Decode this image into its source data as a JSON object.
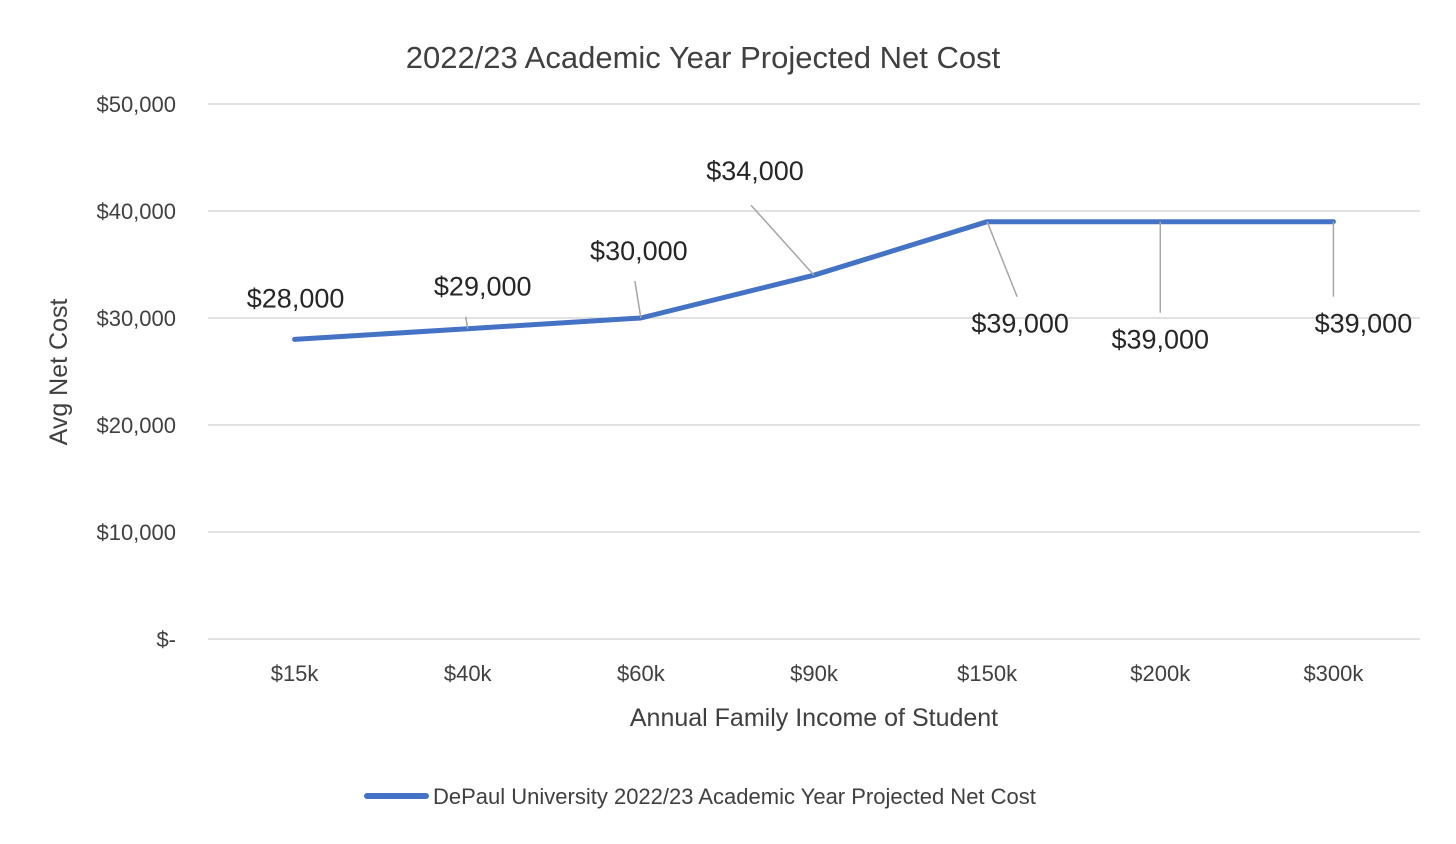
{
  "chart_data": {
    "type": "line",
    "title": "2022/23 Academic Year Projected Net Cost",
    "xlabel": "Annual Family Income of Student",
    "ylabel": "Avg Net Cost",
    "categories": [
      "$15k",
      "$40k",
      "$60k",
      "$90k",
      "$150k",
      "$200k",
      "$300k"
    ],
    "series": [
      {
        "name": "DePaul University 2022/23 Academic Year Projected Net Cost",
        "values": [
          28000,
          29000,
          30000,
          34000,
          39000,
          39000,
          39000
        ],
        "data_labels": [
          "$28,000",
          "$29,000",
          "$30,000",
          "$34,000",
          "$39,000",
          "$39,000",
          "$39,000"
        ],
        "color": "#4472c4"
      }
    ],
    "ylim": [
      0,
      50000
    ],
    "yticks": [
      0,
      10000,
      20000,
      30000,
      40000,
      50000
    ],
    "ytick_labels": [
      "$-",
      "$10,000",
      "$20,000",
      "$30,000",
      "$40,000",
      "$50,000"
    ],
    "grid": true,
    "legend_position": "bottom"
  }
}
